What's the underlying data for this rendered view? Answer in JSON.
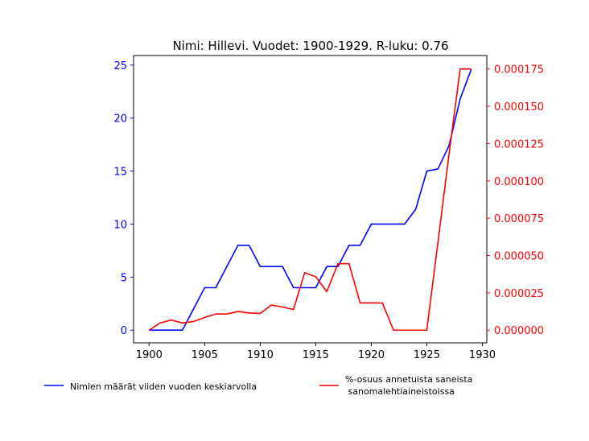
{
  "chart_data": {
    "type": "line",
    "title": "Nimi: Hillevi. Vuodet: 1900-1929. R-luku: 0.76",
    "x": [
      1900,
      1901,
      1902,
      1903,
      1904,
      1905,
      1906,
      1907,
      1908,
      1909,
      1910,
      1911,
      1912,
      1913,
      1914,
      1915,
      1916,
      1917,
      1918,
      1919,
      1920,
      1921,
      1922,
      1923,
      1924,
      1925,
      1926,
      1927,
      1928,
      1929
    ],
    "xlim": [
      1898.6,
      1930.4
    ],
    "x_ticks": [
      {
        "value": 1900,
        "label": "1900"
      },
      {
        "value": 1905,
        "label": "1905"
      },
      {
        "value": 1910,
        "label": "1910"
      },
      {
        "value": 1915,
        "label": "1915"
      },
      {
        "value": 1920,
        "label": "1920"
      },
      {
        "value": 1925,
        "label": "1925"
      },
      {
        "value": 1930,
        "label": "1930"
      }
    ],
    "ylim_left": [
      -1.2,
      25.9
    ],
    "ylim_right": [
      -8.5e-06,
      0.000184
    ],
    "y_ticks_left": [
      {
        "value": 0,
        "label": "0"
      },
      {
        "value": 5,
        "label": "5"
      },
      {
        "value": 10,
        "label": "10"
      },
      {
        "value": 15,
        "label": "15"
      },
      {
        "value": 20,
        "label": "20"
      },
      {
        "value": 25,
        "label": "25"
      }
    ],
    "y_ticks_right": [
      {
        "value": 0,
        "label": "0.000000"
      },
      {
        "value": 2.5e-05,
        "label": "0.000025"
      },
      {
        "value": 5e-05,
        "label": "0.000050"
      },
      {
        "value": 7.5e-05,
        "label": "0.000075"
      },
      {
        "value": 0.0001,
        "label": "0.000100"
      },
      {
        "value": 0.000125,
        "label": "0.000125"
      },
      {
        "value": 0.00015,
        "label": "0.000150"
      },
      {
        "value": 0.000175,
        "label": "0.000175"
      }
    ],
    "grid": false,
    "series": [
      {
        "name": "Nimien määrät viiden vuoden keskiarvolla",
        "axis": "left",
        "color": "#0000ff",
        "values": [
          0,
          0,
          0,
          0,
          2,
          4,
          4,
          6,
          8,
          8,
          6,
          6,
          6,
          4,
          4,
          4,
          6,
          6,
          8,
          8,
          10,
          10,
          10,
          10,
          11.4,
          15,
          15.2,
          17.4,
          21.8,
          24.6
        ]
      },
      {
        "name": "%-osuus annetuista saneista\n sanomalehtiaineistoissa",
        "axis": "right",
        "color": "#ff0000",
        "values": [
          0,
          4.8e-06,
          6.8e-06,
          4.8e-06,
          5.8e-06,
          8.5e-06,
          1.08e-05,
          1.08e-05,
          1.25e-05,
          1.15e-05,
          1.12e-05,
          1.68e-05,
          1.55e-05,
          1.38e-05,
          3.85e-05,
          3.58e-05,
          2.58e-05,
          4.45e-05,
          4.45e-05,
          1.82e-05,
          1.82e-05,
          1.82e-05,
          0,
          0,
          0,
          0,
          5.88e-05,
          0.000118,
          0.000175,
          0.000175
        ]
      }
    ],
    "legend": [
      {
        "label": "Nimien määrät viiden vuoden keskiarvolla",
        "color": "#0000ff"
      },
      {
        "label": "%-osuus annetuista saneista\n sanomalehtiaineistoissa",
        "color": "#ff0000"
      }
    ],
    "legend_position": "bottom"
  }
}
